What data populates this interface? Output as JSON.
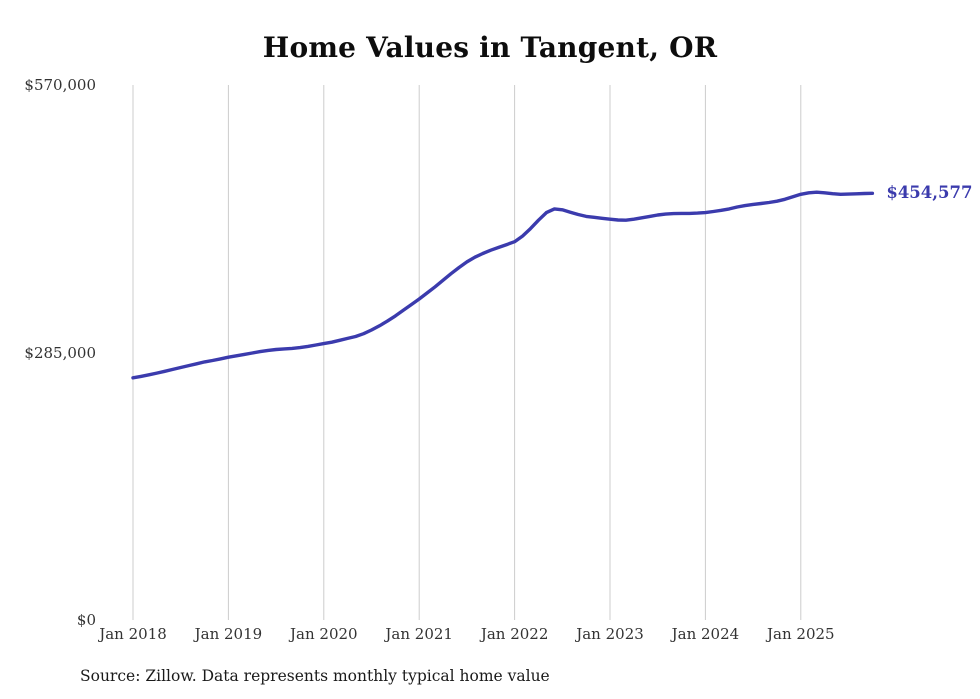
{
  "chart_data": {
    "type": "line",
    "title": "Home Values in Tangent, OR",
    "series_name": "Monthly typical home value",
    "months": [
      "2018-01",
      "2018-02",
      "2018-03",
      "2018-04",
      "2018-05",
      "2018-06",
      "2018-07",
      "2018-08",
      "2018-09",
      "2018-10",
      "2018-11",
      "2018-12",
      "2019-01",
      "2019-02",
      "2019-03",
      "2019-04",
      "2019-05",
      "2019-06",
      "2019-07",
      "2019-08",
      "2019-09",
      "2019-10",
      "2019-11",
      "2019-12",
      "2020-01",
      "2020-02",
      "2020-03",
      "2020-04",
      "2020-05",
      "2020-06",
      "2020-07",
      "2020-08",
      "2020-09",
      "2020-10",
      "2020-11",
      "2020-12",
      "2021-01",
      "2021-02",
      "2021-03",
      "2021-04",
      "2021-05",
      "2021-06",
      "2021-07",
      "2021-08",
      "2021-09",
      "2021-10",
      "2021-11",
      "2021-12",
      "2022-01",
      "2022-02",
      "2022-03",
      "2022-04",
      "2022-05",
      "2022-06",
      "2022-07",
      "2022-08",
      "2022-09",
      "2022-10",
      "2022-11",
      "2022-12",
      "2023-01",
      "2023-02",
      "2023-03",
      "2023-04",
      "2023-05",
      "2023-06",
      "2023-07",
      "2023-08",
      "2023-09",
      "2023-10",
      "2023-11",
      "2023-12",
      "2024-01",
      "2024-02",
      "2024-03",
      "2024-04",
      "2024-05",
      "2024-06",
      "2024-07",
      "2024-08",
      "2024-09",
      "2024-10",
      "2024-11",
      "2024-12",
      "2025-01",
      "2025-02",
      "2025-03",
      "2025-04",
      "2025-05",
      "2025-06",
      "2025-07",
      "2025-08",
      "2025-09",
      "2025-10"
    ],
    "values": [
      258000,
      259500,
      261200,
      263000,
      265000,
      267000,
      269000,
      271000,
      273000,
      275000,
      276500,
      278200,
      280000,
      281500,
      283000,
      284500,
      286000,
      287200,
      288200,
      288800,
      289400,
      290200,
      291500,
      293000,
      294500,
      296000,
      298000,
      300000,
      302000,
      305000,
      309000,
      313500,
      318500,
      324000,
      330000,
      336000,
      342000,
      348500,
      355000,
      362000,
      369000,
      375500,
      381500,
      386500,
      390500,
      394000,
      397000,
      400000,
      403000,
      409000,
      417000,
      426000,
      434000,
      438000,
      437000,
      434500,
      432000,
      430000,
      429000,
      428000,
      427000,
      426200,
      426000,
      427000,
      428500,
      430000,
      431500,
      432500,
      433000,
      433200,
      433200,
      433500,
      434000,
      435200,
      436500,
      438000,
      440000,
      441500,
      442800,
      443800,
      444800,
      446200,
      448200,
      451000,
      453500,
      455200,
      455800,
      455200,
      454200,
      453600,
      453800,
      454100,
      454400,
      454577
    ],
    "x_tick_labels": [
      "Jan 2018",
      "Jan 2019",
      "Jan 2020",
      "Jan 2021",
      "Jan 2022",
      "Jan 2023",
      "Jan 2024",
      "Jan 2025"
    ],
    "y_tick_labels": [
      "$570,000",
      "$285,000",
      "$0"
    ],
    "y_tick_values": [
      570000,
      285000,
      0
    ],
    "ylim": [
      0,
      570000
    ],
    "grid": "vertical-only",
    "legend": "none",
    "end_label": "$454,577",
    "line_color": "#3b3bad",
    "grid_color": "#cccccc",
    "source": "Source: Zillow. Data represents monthly typical home value"
  }
}
